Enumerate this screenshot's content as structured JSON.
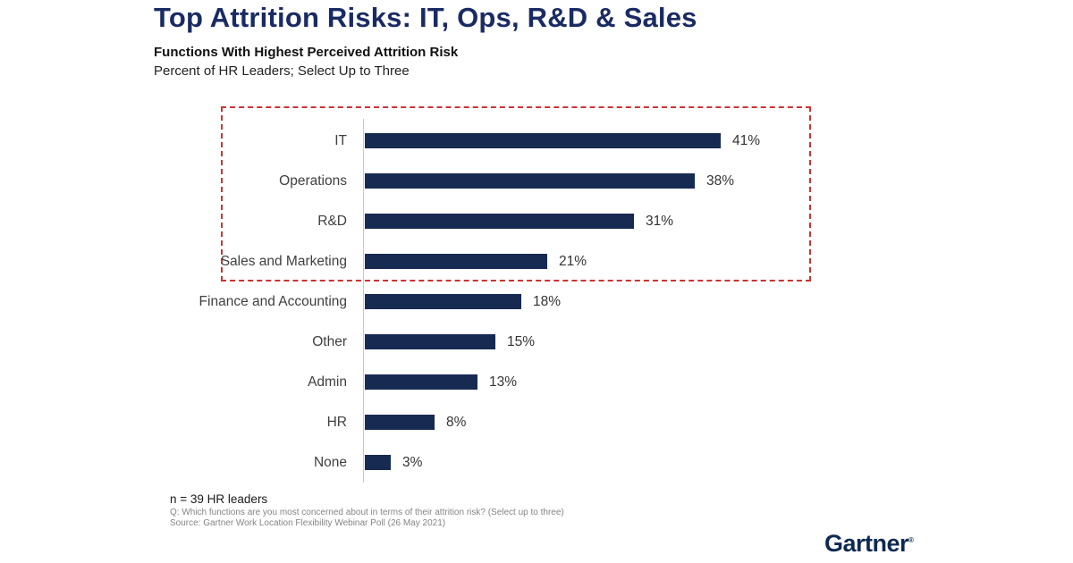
{
  "page": {
    "title": "Top Attrition Risks: IT, Ops, R&D & Sales",
    "subtitle_bold": "Functions With Highest Perceived Attrition Risk",
    "subtitle": "Percent of HR Leaders; Select Up to Three"
  },
  "chart_data": {
    "type": "bar",
    "orientation": "horizontal",
    "title": "Functions With Highest Perceived Attrition Risk",
    "xlabel": "",
    "ylabel": "",
    "categories": [
      "IT",
      "Operations",
      "R&D",
      "Sales and Marketing",
      "Finance and Accounting",
      "Other",
      "Admin",
      "HR",
      "None"
    ],
    "values": [
      41,
      38,
      31,
      21,
      18,
      15,
      13,
      8,
      3
    ],
    "value_labels": [
      "41%",
      "38%",
      "31%",
      "21%",
      "18%",
      "15%",
      "13%",
      "8%",
      "3%"
    ],
    "unit": "percent",
    "xlim": [
      0,
      50
    ],
    "grid": false,
    "legend": false,
    "bar_color": "#172a52",
    "highlighted_categories": [
      "IT",
      "Operations",
      "R&D",
      "Sales and Marketing"
    ],
    "highlight_box_color": "#cc3333"
  },
  "footer": {
    "n_note": "n = 39 HR leaders",
    "question": "Q: Which functions are you most concerned about in terms of their attrition risk? (Select up to three)",
    "source": "Source: Gartner Work Location Flexibility Webinar Poll (26 May 2021)"
  },
  "branding": {
    "logo_text": "Gartner",
    "logo_mark": "®"
  }
}
